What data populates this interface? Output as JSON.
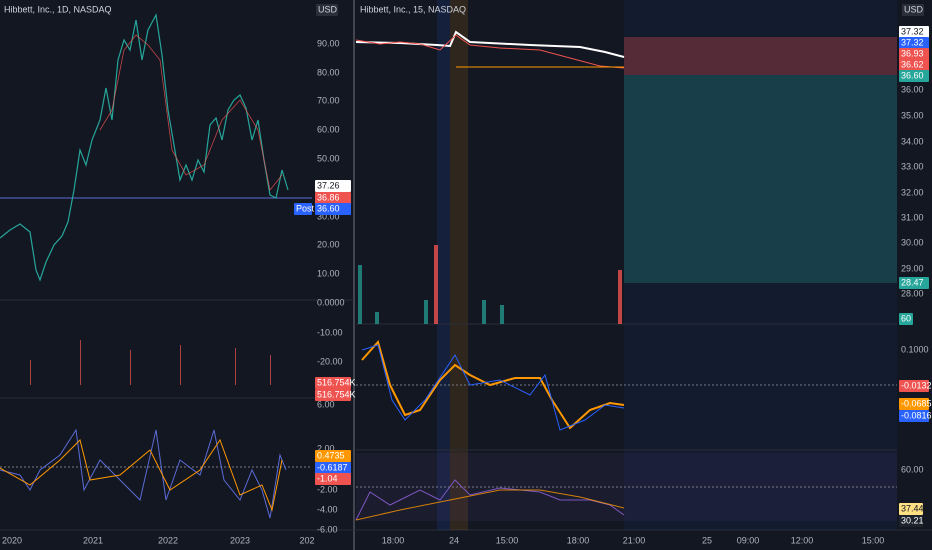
{
  "left_pane": {
    "title": "Hibbett, Inc., 1D, NASDAQ",
    "currency": "USD",
    "price_axis": [
      "90.00",
      "80.00",
      "70.00",
      "60.00",
      "50.00",
      "40.00",
      "30.00",
      "20.00",
      "10.00",
      "0.0000",
      "-10.00",
      "-20.00"
    ],
    "price_labels": [
      "37.26",
      "36.86",
      "36.60"
    ],
    "post_label": "Post",
    "volume_labels": [
      "516.754K",
      "516.754K"
    ],
    "osc_axis": [
      "6.00",
      "2.00",
      "-2.00",
      "-4.00",
      "-6.00"
    ],
    "osc_labels": [
      "0.4735",
      "-0.6187",
      "-1.04"
    ],
    "time_axis": [
      "2020",
      "2021",
      "2022",
      "2023",
      "202"
    ]
  },
  "right_pane": {
    "title": "Hibbett, Inc., 15, NASDAQ",
    "currency": "USD",
    "price_labels": [
      "37.32",
      "37.32",
      "36.93",
      "36.62",
      "36.60"
    ],
    "price_axis": [
      "36.00",
      "35.00",
      "34.00",
      "33.00",
      "32.00",
      "31.00",
      "30.00",
      "29.00",
      "28.00"
    ],
    "target_label": "28.47",
    "volume_label": "60",
    "macd_axis": [
      "0.1000"
    ],
    "macd_labels": [
      "-0.0132",
      "-0.0685",
      "-0.0816"
    ],
    "rsi_axis": [
      "60.00"
    ],
    "rsi_labels": [
      "37.44",
      "30.21"
    ],
    "time_axis": [
      "18:00",
      "24",
      "15:00",
      "18:00",
      "21:00",
      "25",
      "09:00",
      "12:00",
      "15:00"
    ]
  }
}
